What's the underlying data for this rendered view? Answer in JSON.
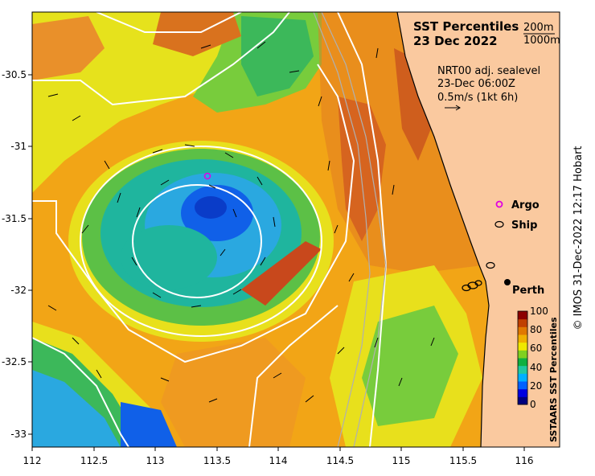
{
  "title": "SST Percentiles",
  "date": "23 Dec 2022",
  "depth_contours": [
    "200m",
    "1000m"
  ],
  "sealevel_note": {
    "line1": "NRT00 adj. sealevel",
    "line2": "23-Dec 06:00Z",
    "line3": "0.5m/s (1kt 6h)"
  },
  "legend": {
    "argo": "Argo",
    "ship": "Ship",
    "city": "Perth",
    "argo_color": "#e000e0",
    "land_color": "#fac99f"
  },
  "x_axis": {
    "ticks": [
      "112",
      "112.5",
      "113",
      "113.5",
      "114",
      "114.5",
      "115",
      "115.5",
      "116"
    ]
  },
  "y_axis": {
    "ticks": [
      "-30.5",
      "-31",
      "-31.5",
      "-32",
      "-32.5",
      "-33"
    ]
  },
  "colorbar": {
    "label": "SSTAARS SST Percentiles",
    "ticks": [
      "100",
      "80",
      "60",
      "40",
      "20",
      "0"
    ],
    "colors": [
      "#00007f",
      "#0000e0",
      "#0060ff",
      "#00b0ff",
      "#20c8a0",
      "#10b040",
      "#80d020",
      "#f0e800",
      "#f0b000",
      "#e07800",
      "#c04000",
      "#8c0000"
    ]
  },
  "credit": "© IMOS 31-Dec-2022 12:17 Hobart"
}
